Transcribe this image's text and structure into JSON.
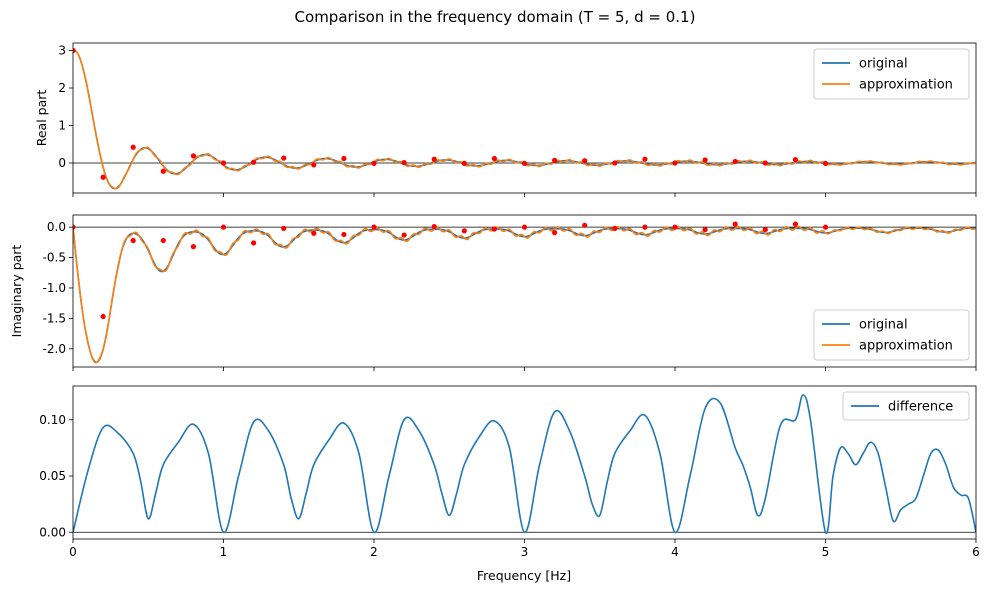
{
  "figure": {
    "title": "Comparison in the frequency domain (T = 5, d = 0.1)",
    "xlabel": "Frequency [Hz]"
  },
  "colors": {
    "original": "#1f77b4",
    "approximation": "#ff7f0e",
    "difference": "#1f77b4",
    "samples": "#ff0000"
  },
  "chart_data": [
    {
      "type": "line",
      "ylabel": "Real part",
      "xlim": [
        0,
        6
      ],
      "ylim": [
        -0.8,
        3.2
      ],
      "yticks": [
        3,
        2,
        1,
        0
      ],
      "xticks": [
        0,
        1,
        2,
        3,
        4,
        5,
        6
      ],
      "show_x_ticklabels": false,
      "legend": "top-right",
      "model": {
        "kind": "real",
        "T": 5,
        "d": 0.1,
        "approx_ripple": 0.03
      },
      "series": [
        {
          "name": "original",
          "color": "#1f77b4"
        },
        {
          "name": "approximation",
          "color": "#ff7f0e"
        }
      ],
      "samples": {
        "x": [
          0,
          0.2,
          0.4,
          0.6,
          0.8,
          1.0,
          1.2,
          1.4,
          1.6,
          1.8,
          2.0,
          2.2,
          2.4,
          2.6,
          2.8,
          3.0,
          3.2,
          3.4,
          3.6,
          3.8,
          4.0,
          4.2,
          4.4,
          4.6,
          4.8,
          5.0
        ],
        "y": [
          3.0,
          -0.38,
          0.42,
          -0.22,
          0.19,
          0.0,
          0.02,
          0.13,
          -0.05,
          0.12,
          -0.01,
          0.01,
          0.1,
          -0.01,
          0.12,
          -0.01,
          0.07,
          0.06,
          0.0,
          0.1,
          0.0,
          0.08,
          0.04,
          0.0,
          0.09,
          -0.01
        ]
      }
    },
    {
      "type": "line",
      "ylabel": "Imaginary part",
      "xlim": [
        0,
        6
      ],
      "ylim": [
        -2.3,
        0.2
      ],
      "yticks": [
        0.0,
        -0.5,
        -1.0,
        -1.5,
        -2.0
      ],
      "xticks": [
        0,
        1,
        2,
        3,
        4,
        5,
        6
      ],
      "show_x_ticklabels": false,
      "legend": "bottom-right",
      "model": {
        "kind": "imag",
        "T": 5,
        "d": 0.1,
        "approx_ripple": 0.03
      },
      "series": [
        {
          "name": "original",
          "color": "#1f77b4"
        },
        {
          "name": "approximation",
          "color": "#ff7f0e"
        }
      ],
      "samples": {
        "x": [
          0,
          0.2,
          0.4,
          0.6,
          0.8,
          1.0,
          1.2,
          1.4,
          1.6,
          1.8,
          2.0,
          2.2,
          2.4,
          2.6,
          2.8,
          3.0,
          3.2,
          3.4,
          3.6,
          3.8,
          4.0,
          4.2,
          4.4,
          4.6,
          4.8,
          5.0
        ],
        "y": [
          0.0,
          -1.47,
          -0.22,
          -0.22,
          -0.32,
          0.0,
          -0.26,
          -0.02,
          -0.1,
          -0.12,
          0.0,
          -0.13,
          0.01,
          -0.06,
          -0.03,
          0.0,
          -0.09,
          0.03,
          -0.02,
          0.0,
          0.0,
          -0.04,
          0.05,
          -0.04,
          0.05,
          0.0
        ]
      }
    },
    {
      "type": "line",
      "ylabel": "",
      "xlim": [
        0,
        6
      ],
      "ylim": [
        -0.006,
        0.13
      ],
      "yticks": [
        0.1,
        0.05,
        0.0
      ],
      "ytick_labels": [
        "0.10",
        "0.05",
        "0.00"
      ],
      "xticks": [
        0,
        1,
        2,
        3,
        4,
        5,
        6
      ],
      "show_x_ticklabels": true,
      "legend": "top-right",
      "series": [
        {
          "name": "difference",
          "color": "#1f77b4",
          "x": [
            0,
            0.1,
            0.2,
            0.3,
            0.4,
            0.45,
            0.5,
            0.55,
            0.6,
            0.7,
            0.8,
            0.9,
            1.0,
            1.1,
            1.2,
            1.3,
            1.4,
            1.45,
            1.5,
            1.55,
            1.6,
            1.7,
            1.8,
            1.9,
            2.0,
            2.1,
            2.2,
            2.3,
            2.4,
            2.45,
            2.5,
            2.55,
            2.6,
            2.7,
            2.8,
            2.9,
            3.0,
            3.1,
            3.2,
            3.3,
            3.4,
            3.45,
            3.5,
            3.55,
            3.6,
            3.7,
            3.8,
            3.9,
            4.0,
            4.1,
            4.2,
            4.3,
            4.4,
            4.45,
            4.5,
            4.55,
            4.6,
            4.7,
            4.8,
            4.85,
            4.9,
            5.0,
            5.05,
            5.1,
            5.15,
            5.2,
            5.25,
            5.3,
            5.35,
            5.4,
            5.45,
            5.5,
            5.55,
            5.6,
            5.65,
            5.7,
            5.75,
            5.8,
            5.85,
            5.9,
            5.95,
            6.0
          ],
          "y": [
            0.0,
            0.055,
            0.093,
            0.088,
            0.07,
            0.045,
            0.012,
            0.035,
            0.06,
            0.08,
            0.096,
            0.07,
            0.0,
            0.05,
            0.098,
            0.09,
            0.06,
            0.03,
            0.012,
            0.035,
            0.06,
            0.082,
            0.097,
            0.07,
            0.0,
            0.05,
            0.1,
            0.09,
            0.06,
            0.035,
            0.015,
            0.035,
            0.06,
            0.085,
            0.099,
            0.075,
            0.0,
            0.06,
            0.107,
            0.09,
            0.05,
            0.025,
            0.015,
            0.045,
            0.07,
            0.09,
            0.104,
            0.07,
            0.0,
            0.05,
            0.11,
            0.115,
            0.075,
            0.06,
            0.04,
            0.015,
            0.03,
            0.095,
            0.1,
            0.122,
            0.1,
            0.0,
            0.05,
            0.075,
            0.07,
            0.06,
            0.07,
            0.08,
            0.07,
            0.04,
            0.01,
            0.02,
            0.025,
            0.03,
            0.05,
            0.07,
            0.073,
            0.06,
            0.04,
            0.033,
            0.03,
            0.0
          ]
        }
      ]
    }
  ]
}
